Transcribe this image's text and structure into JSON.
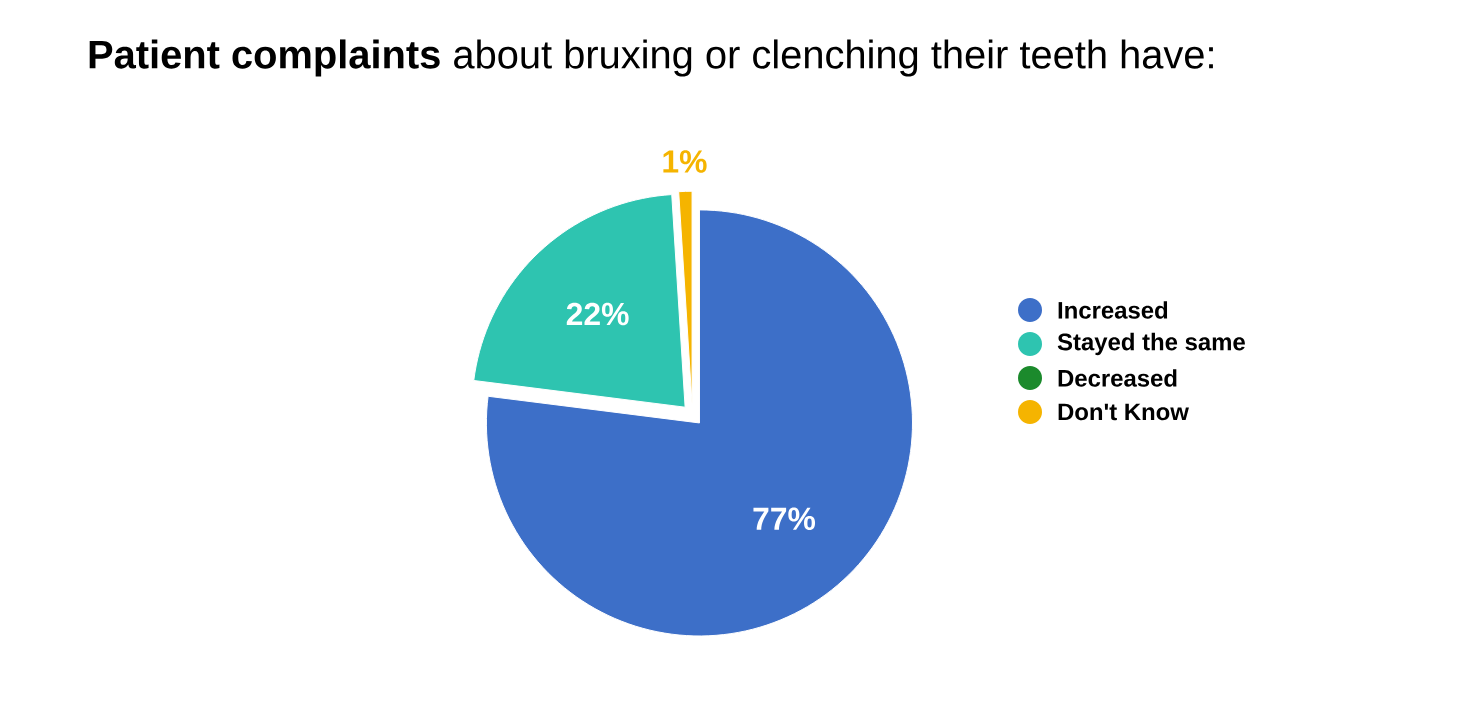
{
  "chart_data": {
    "type": "pie",
    "title": "**Patient complaints** about bruxing or clenching their teeth have:",
    "categories": [
      "Increased",
      "Stayed the same",
      "Decreased",
      "Don't Know"
    ],
    "values": [
      77,
      22,
      0,
      1
    ],
    "value_labels": [
      "77%",
      "22%",
      null,
      "1%"
    ],
    "colors": [
      "#3d6fc8",
      "#2ec4b0",
      "#1b8a2c",
      "#f5b400"
    ],
    "legend": "right"
  }
}
